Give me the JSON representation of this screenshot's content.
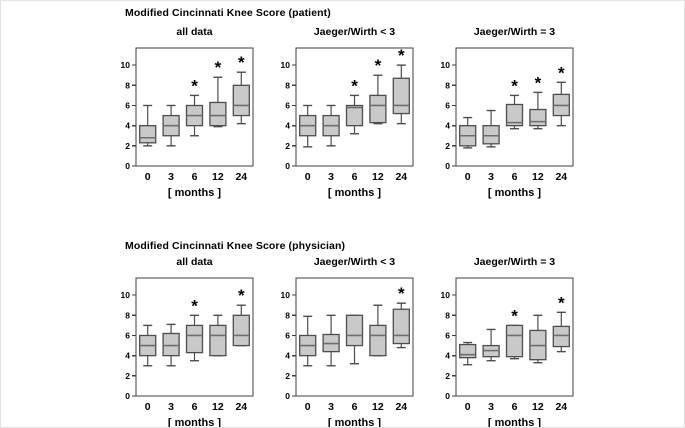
{
  "row_titles": [
    "Modified Cincinnati Knee Score (patient)",
    "Modified Cincinnati Knee Score (physician)"
  ],
  "significance_marker": "*",
  "colors": {
    "background": "#ffffff",
    "box_fill": "#c9c9c9",
    "box_stroke": "#4d4d4d",
    "median_line": "#6e6e6e",
    "whisker": "#4d4d4d",
    "frame": "#3f3f3f",
    "text": "#000000",
    "star": "#000000"
  },
  "chart_data": [
    {
      "type": "box",
      "panel": "patient-all-data",
      "title": "all data",
      "xlabel": "[ months ]",
      "categories": [
        "0",
        "3",
        "6",
        "12",
        "24"
      ],
      "ylim": [
        0,
        11.7
      ],
      "yticks": [
        0,
        2,
        4,
        6,
        8,
        10
      ],
      "boxes": [
        {
          "category": "0",
          "whisker_low": 2.0,
          "q1": 2.3,
          "median": 2.8,
          "q3": 4.0,
          "whisker_high": 6.0,
          "star": false
        },
        {
          "category": "3",
          "whisker_low": 2.0,
          "q1": 3.0,
          "median": 4.0,
          "q3": 5.0,
          "whisker_high": 6.0,
          "star": false
        },
        {
          "category": "6",
          "whisker_low": 3.0,
          "q1": 4.0,
          "median": 5.0,
          "q3": 6.0,
          "whisker_high": 7.0,
          "star": true
        },
        {
          "category": "12",
          "whisker_low": 3.9,
          "q1": 4.0,
          "median": 5.0,
          "q3": 6.3,
          "whisker_high": 8.8,
          "star": true
        },
        {
          "category": "24",
          "whisker_low": 4.2,
          "q1": 5.0,
          "median": 6.0,
          "q3": 8.0,
          "whisker_high": 9.3,
          "star": true
        }
      ]
    },
    {
      "type": "box",
      "panel": "patient-jaeger-wirth-lt3",
      "title": "Jaeger/Wirth < 3",
      "xlabel": "[ months ]",
      "categories": [
        "0",
        "3",
        "6",
        "12",
        "24"
      ],
      "ylim": [
        0,
        11.7
      ],
      "yticks": [
        0,
        2,
        4,
        6,
        8,
        10
      ],
      "boxes": [
        {
          "category": "0",
          "whisker_low": 1.9,
          "q1": 3.0,
          "median": 4.0,
          "q3": 5.0,
          "whisker_high": 6.0,
          "star": false
        },
        {
          "category": "3",
          "whisker_low": 2.0,
          "q1": 3.0,
          "median": 4.0,
          "q3": 5.0,
          "whisker_high": 6.0,
          "star": false
        },
        {
          "category": "6",
          "whisker_low": 3.2,
          "q1": 4.0,
          "median": 5.8,
          "q3": 6.0,
          "whisker_high": 7.0,
          "star": true
        },
        {
          "category": "12",
          "whisker_low": 4.2,
          "q1": 4.3,
          "median": 6.0,
          "q3": 7.0,
          "whisker_high": 9.0,
          "star": true
        },
        {
          "category": "24",
          "whisker_low": 4.2,
          "q1": 5.2,
          "median": 6.0,
          "q3": 8.7,
          "whisker_high": 10.0,
          "star": true
        }
      ]
    },
    {
      "type": "box",
      "panel": "patient-jaeger-wirth-eq3",
      "title": "Jaeger/Wirth = 3",
      "xlabel": "[ months ]",
      "categories": [
        "0",
        "3",
        "6",
        "12",
        "24"
      ],
      "ylim": [
        0,
        11.7
      ],
      "yticks": [
        0,
        2,
        4,
        6,
        8,
        10
      ],
      "boxes": [
        {
          "category": "0",
          "whisker_low": 1.8,
          "q1": 2.0,
          "median": 3.0,
          "q3": 4.0,
          "whisker_high": 4.8,
          "star": false
        },
        {
          "category": "3",
          "whisker_low": 1.9,
          "q1": 2.2,
          "median": 3.0,
          "q3": 4.0,
          "whisker_high": 5.5,
          "star": false
        },
        {
          "category": "6",
          "whisker_low": 3.7,
          "q1": 4.0,
          "median": 4.3,
          "q3": 6.1,
          "whisker_high": 7.0,
          "star": true
        },
        {
          "category": "12",
          "whisker_low": 3.7,
          "q1": 4.0,
          "median": 4.4,
          "q3": 5.6,
          "whisker_high": 7.3,
          "star": true
        },
        {
          "category": "24",
          "whisker_low": 4.0,
          "q1": 5.0,
          "median": 6.0,
          "q3": 7.1,
          "whisker_high": 8.3,
          "star": true
        }
      ]
    },
    {
      "type": "box",
      "panel": "physician-all-data",
      "title": "all data",
      "xlabel": "[ months ]",
      "categories": [
        "0",
        "3",
        "6",
        "12",
        "24"
      ],
      "ylim": [
        0,
        11.7
      ],
      "yticks": [
        0,
        2,
        4,
        6,
        8,
        10
      ],
      "boxes": [
        {
          "category": "0",
          "whisker_low": 3.0,
          "q1": 4.0,
          "median": 5.0,
          "q3": 6.0,
          "whisker_high": 7.0,
          "star": false
        },
        {
          "category": "3",
          "whisker_low": 3.0,
          "q1": 4.0,
          "median": 5.0,
          "q3": 6.2,
          "whisker_high": 7.1,
          "star": false
        },
        {
          "category": "6",
          "whisker_low": 3.5,
          "q1": 4.3,
          "median": 6.0,
          "q3": 7.0,
          "whisker_high": 8.0,
          "star": true
        },
        {
          "category": "12",
          "whisker_low": 4.0,
          "q1": 4.0,
          "median": 6.0,
          "q3": 7.0,
          "whisker_high": 8.0,
          "star": false
        },
        {
          "category": "24",
          "whisker_low": 5.0,
          "q1": 5.0,
          "median": 6.0,
          "q3": 8.0,
          "whisker_high": 9.0,
          "star": true
        }
      ]
    },
    {
      "type": "box",
      "panel": "physician-jaeger-wirth-lt3",
      "title": "Jaeger/Wirth < 3",
      "xlabel": "[ months ]",
      "categories": [
        "0",
        "3",
        "6",
        "12",
        "24"
      ],
      "ylim": [
        0,
        11.7
      ],
      "yticks": [
        0,
        2,
        4,
        6,
        8,
        10
      ],
      "boxes": [
        {
          "category": "0",
          "whisker_low": 3.0,
          "q1": 4.0,
          "median": 5.0,
          "q3": 6.0,
          "whisker_high": 7.9,
          "star": false
        },
        {
          "category": "3",
          "whisker_low": 3.0,
          "q1": 4.4,
          "median": 5.2,
          "q3": 6.1,
          "whisker_high": 8.0,
          "star": false
        },
        {
          "category": "6",
          "whisker_low": 3.2,
          "q1": 5.0,
          "median": 6.0,
          "q3": 8.0,
          "whisker_high": 8.0,
          "star": false
        },
        {
          "category": "12",
          "whisker_low": 4.0,
          "q1": 4.0,
          "median": 6.0,
          "q3": 7.0,
          "whisker_high": 9.0,
          "star": false
        },
        {
          "category": "24",
          "whisker_low": 4.8,
          "q1": 5.2,
          "median": 6.0,
          "q3": 8.6,
          "whisker_high": 9.2,
          "star": true
        }
      ]
    },
    {
      "type": "box",
      "panel": "physician-jaeger-wirth-eq3",
      "title": "Jaeger/Wirth = 3",
      "xlabel": "[ months ]",
      "categories": [
        "0",
        "3",
        "6",
        "12",
        "24"
      ],
      "ylim": [
        0,
        11.7
      ],
      "yticks": [
        0,
        2,
        4,
        6,
        8,
        10
      ],
      "boxes": [
        {
          "category": "0",
          "whisker_low": 3.1,
          "q1": 3.8,
          "median": 4.1,
          "q3": 5.1,
          "whisker_high": 5.3,
          "star": false
        },
        {
          "category": "3",
          "whisker_low": 3.5,
          "q1": 3.9,
          "median": 4.5,
          "q3": 5.0,
          "whisker_high": 6.6,
          "star": false
        },
        {
          "category": "6",
          "whisker_low": 3.7,
          "q1": 3.9,
          "median": 6.0,
          "q3": 7.0,
          "whisker_high": 7.0,
          "star": true
        },
        {
          "category": "12",
          "whisker_low": 3.3,
          "q1": 3.6,
          "median": 5.0,
          "q3": 6.5,
          "whisker_high": 8.0,
          "star": false
        },
        {
          "category": "24",
          "whisker_low": 4.4,
          "q1": 4.9,
          "median": 6.0,
          "q3": 6.9,
          "whisker_high": 8.3,
          "star": true
        }
      ]
    }
  ]
}
